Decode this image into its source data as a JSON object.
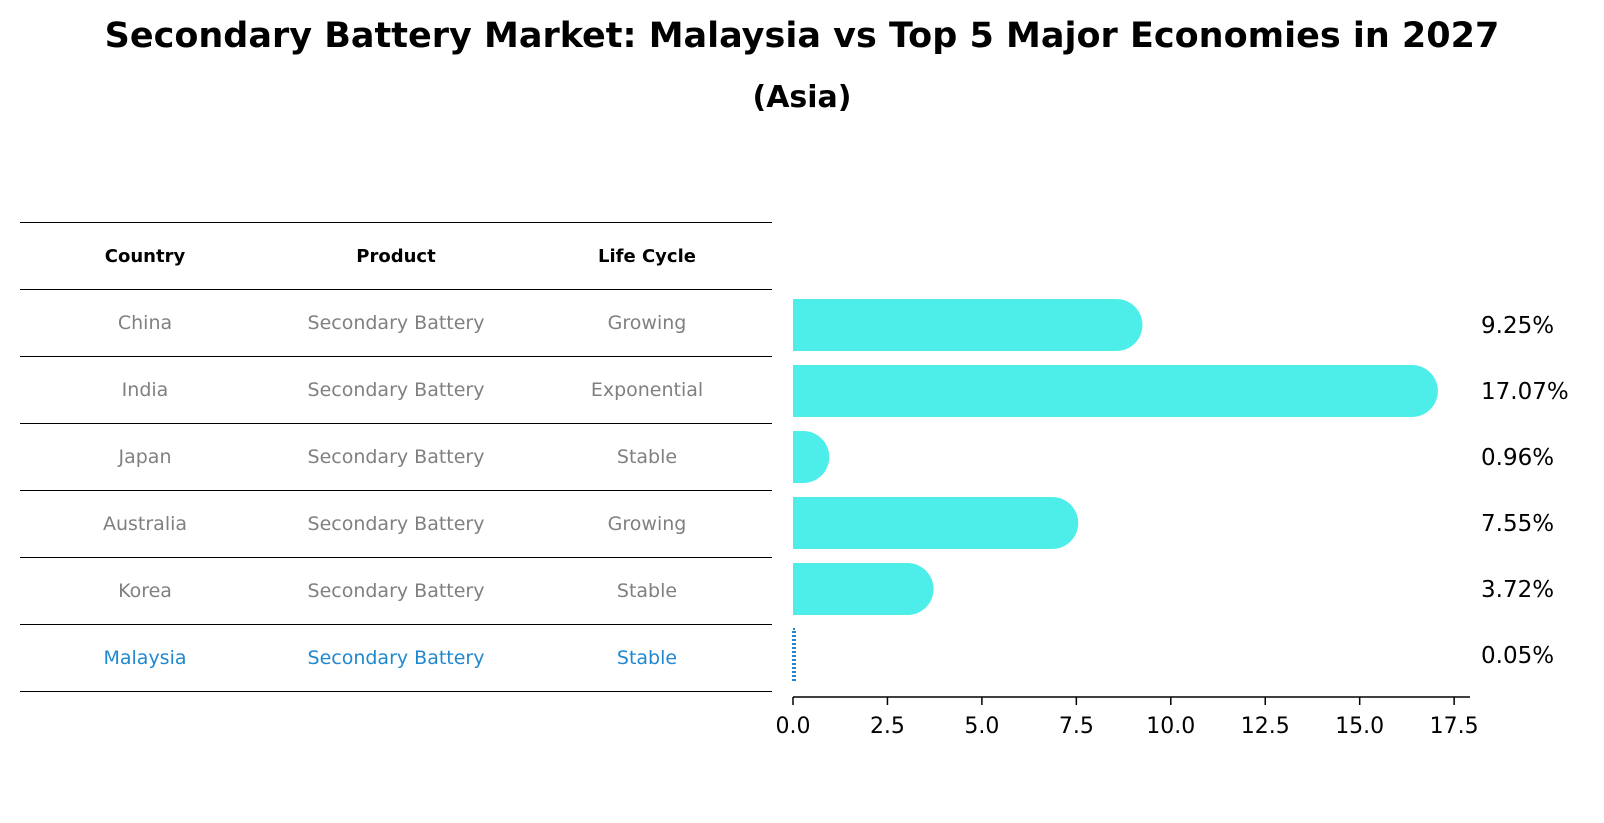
{
  "title": "Secondary Battery Market: Malaysia vs Top 5 Major Economies in 2027",
  "subtitle": "(Asia)",
  "table": {
    "headers": [
      "Country",
      "Product",
      "Life Cycle"
    ],
    "rows": [
      {
        "country": "China",
        "product": "Secondary Battery",
        "life_cycle": "Growing"
      },
      {
        "country": "India",
        "product": "Secondary Battery",
        "life_cycle": "Exponential"
      },
      {
        "country": "Japan",
        "product": "Secondary Battery",
        "life_cycle": "Stable"
      },
      {
        "country": "Australia",
        "product": "Secondary Battery",
        "life_cycle": "Growing"
      },
      {
        "country": "Korea",
        "product": "Secondary Battery",
        "life_cycle": "Stable"
      },
      {
        "country": "Malaysia",
        "product": "Secondary Battery",
        "life_cycle": "Stable"
      }
    ]
  },
  "colors": {
    "bar": "#4deeea",
    "highlight": "#1f88d0",
    "muted_text": "#808080"
  },
  "chart_data": {
    "type": "bar",
    "orientation": "horizontal",
    "categories": [
      "China",
      "India",
      "Japan",
      "Australia",
      "Korea",
      "Malaysia"
    ],
    "values": [
      9.25,
      17.07,
      0.96,
      7.55,
      3.72,
      0.05
    ],
    "value_labels": [
      "9.25%",
      "17.07%",
      "0.96%",
      "7.55%",
      "3.72%",
      "0.05%"
    ],
    "xlim": [
      0,
      17.92
    ],
    "xticks": [
      0.0,
      2.5,
      5.0,
      7.5,
      10.0,
      12.5,
      15.0,
      17.5
    ],
    "xtick_labels": [
      "0.0",
      "2.5",
      "5.0",
      "7.5",
      "10.0",
      "12.5",
      "15.0",
      "17.5"
    ],
    "highlight_category": "Malaysia"
  }
}
